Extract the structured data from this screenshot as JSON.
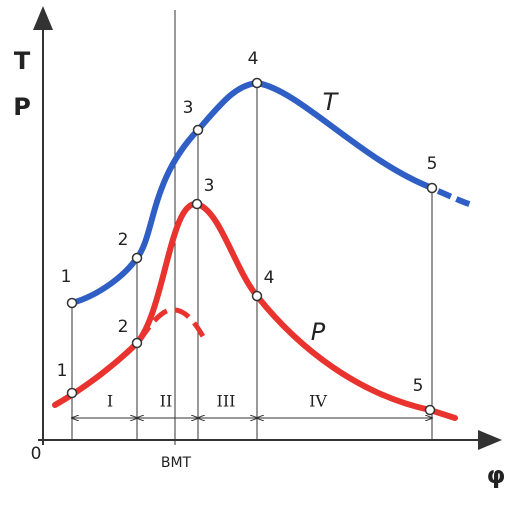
{
  "axes": {
    "y_label_top": "T",
    "y_label_bottom": "P",
    "origin": "0",
    "x_label": "φ"
  },
  "markers": {
    "bmt": "BMT"
  },
  "curves": [
    {
      "label": "T",
      "points": [
        "1",
        "2",
        "3",
        "4",
        "5"
      ]
    },
    {
      "label": "P",
      "points": [
        "1",
        "2",
        "3",
        "4",
        "5"
      ]
    }
  ],
  "phases": [
    "I",
    "II",
    "III",
    "IV"
  ]
}
